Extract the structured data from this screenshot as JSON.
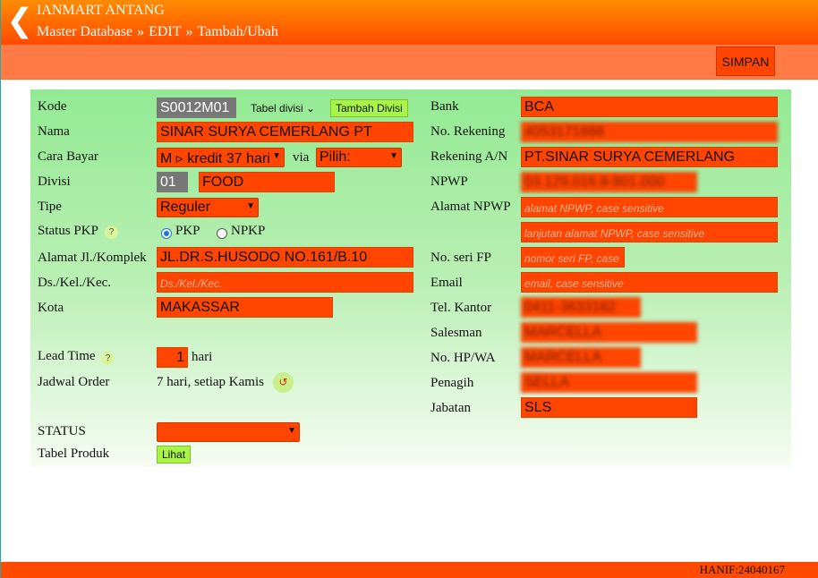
{
  "header": {
    "back_icon": "chevron-left-icon",
    "app_title": "IANMART ANTANG",
    "breadcrumb": [
      "Master Database",
      "EDIT",
      "Tambah/Ubah"
    ],
    "breadcrumb_sep": "»"
  },
  "toolbar": {
    "save_label": "SIMPAN"
  },
  "left": {
    "kode": {
      "label": "Kode",
      "value": "S0012M01",
      "table_select": "Tabel divisi",
      "add_button": "Tambah Divisi"
    },
    "nama": {
      "label": "Nama",
      "value": "SINAR SURYA CEMERLANG PT"
    },
    "cara_bayar": {
      "label": "Cara Bayar",
      "value": "M ▹ kredit 37 hari",
      "via_label": "via",
      "via_value": "Pilih:"
    },
    "divisi": {
      "label": "Divisi",
      "code": "01",
      "name": "FOOD"
    },
    "tipe": {
      "label": "Tipe",
      "value": "Reguler"
    },
    "status_pkp": {
      "label": "Status PKP",
      "options": [
        "PKP",
        "NPKP"
      ],
      "selected": "PKP"
    },
    "alamat": {
      "label": "Alamat Jl./Komplek",
      "value": "JL.DR.S.HUSODO NO.161/B.10"
    },
    "ds_kel_kec": {
      "label": "Ds./Kel./Kec.",
      "placeholder": "Ds./Kel./Kec."
    },
    "kota": {
      "label": "Kota",
      "value": "MAKASSAR"
    },
    "lead_time": {
      "label": "Lead Time",
      "value": "1",
      "unit": "hari"
    },
    "jadwal_order": {
      "label": "Jadwal Order",
      "value": "7 hari, setiap Kamis"
    },
    "status": {
      "label": "STATUS",
      "value": ""
    },
    "tabel_produk": {
      "label": "Tabel Produk",
      "button": "Lihat"
    }
  },
  "right": {
    "bank": {
      "label": "Bank",
      "value": "BCA"
    },
    "no_rekening": {
      "label": "No. Rekening",
      "value": "4053171888"
    },
    "rekening_an": {
      "label": "Rekening A/N",
      "value": "PT.SINAR SURYA CEMERLANG"
    },
    "npwp": {
      "label": "NPWP",
      "value": "03.129.016.8-801.000"
    },
    "alamat_npwp": {
      "label": "Alamat NPWP",
      "placeholder": "alamat NPWP, case sensitive",
      "placeholder2": "lanjutan alamat NPWP, case sensitive"
    },
    "no_seri_fp": {
      "label": "No. seri FP",
      "placeholder": "nomor seri FP, case"
    },
    "email": {
      "label": "Email",
      "placeholder": "email, case sensitive"
    },
    "tel_kantor": {
      "label": "Tel. Kantor",
      "value": "0411-3633182"
    },
    "salesman": {
      "label": "Salesman",
      "value": "MARCELLA"
    },
    "no_hp_wa": {
      "label": "No. HP/WA",
      "value": "MARCELLA"
    },
    "penagih": {
      "label": "Penagih",
      "value": "SELLA"
    },
    "jabatan": {
      "label": "Jabatan",
      "value": "SLS"
    }
  },
  "footer": {
    "user": "HANIF:24040167"
  },
  "colors": {
    "accent": "#ff4500",
    "header": "#ff8c00",
    "panel": "#93ea93",
    "button_green": "#a8f548"
  }
}
